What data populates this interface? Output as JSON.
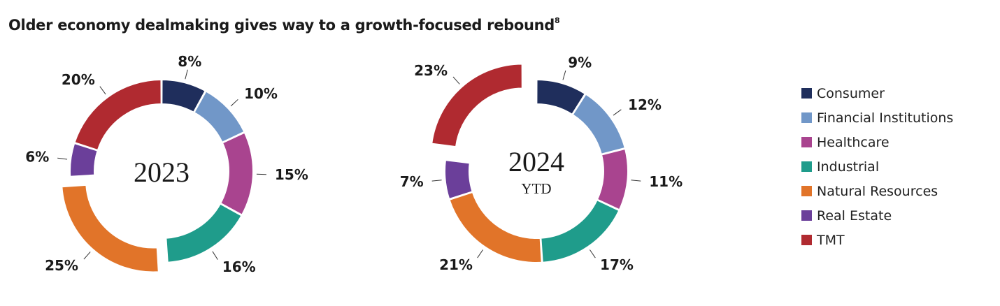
{
  "title": "Older economy dealmaking gives way to a growth-focused rebound",
  "title_superscript": "8",
  "categories": [
    "Consumer",
    "Financial Institutions",
    "Healthcare",
    "Industrial",
    "Natural Resources",
    "Real Estate",
    "TMT"
  ],
  "colors": {
    "Consumer": "#1f2e5c",
    "Financial Institutions": "#7197c8",
    "Healthcare": "#a9448f",
    "Industrial": "#1f9c8b",
    "Natural Resources": "#e17429",
    "Real Estate": "#6b3f9a",
    "TMT": "#b02a30"
  },
  "chart_data": [
    {
      "type": "pie",
      "subtype": "donut",
      "center_label": "2023",
      "center_sublabel": "",
      "categories": [
        "Consumer",
        "Financial Institutions",
        "Healthcare",
        "Industrial",
        "Natural Resources",
        "Real Estate",
        "TMT"
      ],
      "values": [
        8,
        10,
        15,
        16,
        25,
        6,
        20
      ],
      "labels": [
        "8%",
        "10%",
        "15%",
        "16%",
        "25%",
        "6%",
        "20%"
      ],
      "exploded": "Natural Resources"
    },
    {
      "type": "pie",
      "subtype": "donut",
      "center_label": "2024",
      "center_sublabel": "YTD",
      "categories": [
        "Consumer",
        "Financial Institutions",
        "Healthcare",
        "Industrial",
        "Natural Resources",
        "Real Estate",
        "TMT"
      ],
      "values": [
        9,
        12,
        11,
        17,
        21,
        7,
        23
      ],
      "labels": [
        "9%",
        "12%",
        "11%",
        "17%",
        "21%",
        "7%",
        "23%"
      ],
      "exploded": "TMT"
    }
  ]
}
